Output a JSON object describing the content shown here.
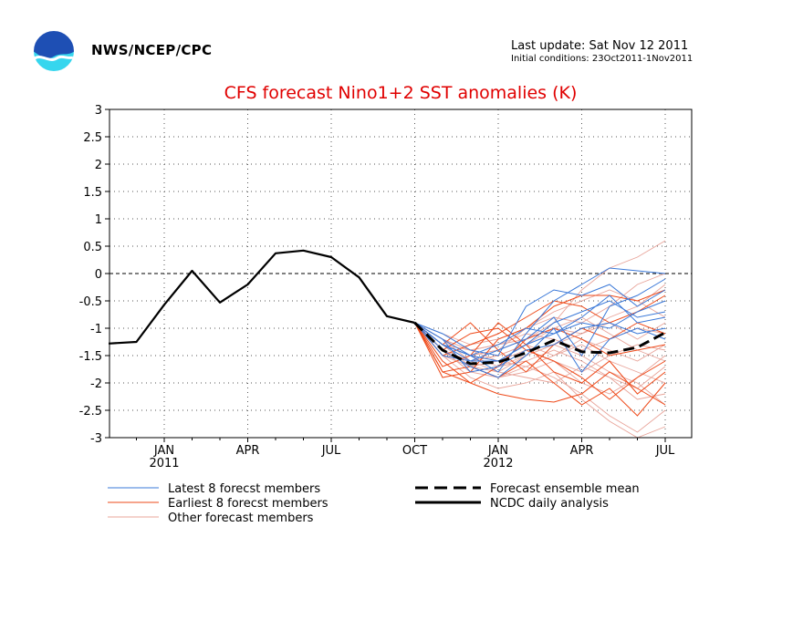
{
  "header": {
    "agency": "NWS/NCEP/CPC",
    "last_update": "Last update: Sat Nov 12 2011",
    "initial_conditions": "Initial conditions: 23Oct2011-1Nov2011"
  },
  "colors": {
    "title": "#e00000",
    "latest": "#3a78d8",
    "earliest": "#ee4a1a",
    "other": "#e8a49a",
    "mean": "#000000",
    "analysis": "#000000",
    "logo_blue": "#1e4fb4",
    "logo_cyan": "#36d6ee"
  },
  "chart_data": {
    "type": "line",
    "title": "CFS forecast Nino1+2 SST anomalies (K)",
    "ylim": [
      -3,
      3
    ],
    "yticks": [
      "3",
      "2.5",
      "2",
      "1.5",
      "1",
      "0.5",
      "0",
      "-0.5",
      "-1",
      "-1.5",
      "-2",
      "-2.5",
      "-3"
    ],
    "xlim": [
      -2,
      18
    ],
    "xticks": [
      {
        "x": 0,
        "label": "JAN",
        "year": "2011"
      },
      {
        "x": 3,
        "label": "APR",
        "year": ""
      },
      {
        "x": 6,
        "label": "JUL",
        "year": ""
      },
      {
        "x": 9,
        "label": "OCT",
        "year": ""
      },
      {
        "x": 12,
        "label": "JAN",
        "year": "2012"
      },
      {
        "x": 15,
        "label": "APR",
        "year": ""
      },
      {
        "x": 18,
        "label": "JUL",
        "year": ""
      }
    ],
    "grid": true,
    "zero_line": true,
    "analysis": {
      "name": "NCDC daily analysis",
      "x": [
        -2,
        -1,
        0,
        1,
        2,
        3,
        4,
        5,
        6,
        7,
        8,
        9
      ],
      "y": [
        -1.28,
        -1.25,
        -0.57,
        0.05,
        -0.53,
        -0.2,
        0.37,
        0.42,
        0.3,
        -0.07,
        -0.78,
        -0.9
      ]
    },
    "ensemble_mean": {
      "name": "Forecast ensemble mean",
      "x": [
        9,
        10,
        11,
        12,
        13,
        14,
        15,
        16,
        17,
        18
      ],
      "y": [
        -0.9,
        -1.4,
        -1.65,
        -1.62,
        -1.45,
        -1.22,
        -1.43,
        -1.45,
        -1.35,
        -1.08
      ]
    },
    "members": {
      "x": [
        9,
        10,
        11,
        12,
        13,
        14,
        15,
        16,
        17,
        18
      ],
      "latest": {
        "name": "Latest 8 forecst members",
        "series": [
          [
            -0.9,
            -1.2,
            -1.5,
            -1.8,
            -1.1,
            -0.5,
            -0.2,
            0.1,
            0.05,
            0.0
          ],
          [
            -0.9,
            -1.3,
            -1.6,
            -1.6,
            -1.3,
            -0.9,
            -0.7,
            -0.5,
            -0.8,
            -0.7
          ],
          [
            -0.9,
            -1.1,
            -1.4,
            -1.5,
            -0.6,
            -0.3,
            -0.4,
            -0.2,
            -0.6,
            -0.3
          ],
          [
            -0.9,
            -1.4,
            -1.7,
            -1.9,
            -1.5,
            -1.0,
            -1.8,
            -1.2,
            -1.0,
            -1.2
          ],
          [
            -0.9,
            -1.3,
            -1.5,
            -1.3,
            -1.0,
            -1.1,
            -0.8,
            -0.4,
            -0.9,
            -0.8
          ],
          [
            -0.9,
            -1.2,
            -1.8,
            -1.7,
            -1.4,
            -1.3,
            -1.0,
            -0.9,
            -1.1,
            -1.0
          ],
          [
            -0.9,
            -1.5,
            -1.6,
            -1.4,
            -1.2,
            -0.8,
            -1.5,
            -0.6,
            -0.4,
            -0.1
          ],
          [
            -0.9,
            -1.3,
            -1.5,
            -1.6,
            -1.3,
            -1.1,
            -0.9,
            -1.0,
            -0.7,
            -0.5
          ]
        ]
      },
      "earliest": {
        "name": "Earliest 8 forecst members",
        "series": [
          [
            -0.9,
            -1.9,
            -1.8,
            -1.2,
            -1.0,
            -0.6,
            -0.4,
            -0.4,
            -0.5,
            -0.3
          ],
          [
            -0.9,
            -1.8,
            -2.0,
            -2.2,
            -2.3,
            -2.35,
            -2.2,
            -1.8,
            -2.1,
            -2.4
          ],
          [
            -0.9,
            -1.4,
            -1.1,
            -1.0,
            -1.4,
            -1.6,
            -1.9,
            -2.3,
            -1.9,
            -1.6
          ],
          [
            -0.9,
            -1.7,
            -1.5,
            -0.9,
            -1.3,
            -1.8,
            -2.0,
            -1.6,
            -2.2,
            -1.8
          ],
          [
            -0.9,
            -1.6,
            -2.0,
            -1.7,
            -1.2,
            -1.0,
            -1.2,
            -1.5,
            -1.4,
            -1.3
          ],
          [
            -0.9,
            -1.5,
            -1.3,
            -1.1,
            -0.8,
            -0.5,
            -0.6,
            -0.9,
            -0.7,
            -0.4
          ],
          [
            -0.9,
            -1.8,
            -1.7,
            -1.9,
            -1.6,
            -2.0,
            -2.4,
            -2.1,
            -2.6,
            -2.0
          ],
          [
            -0.9,
            -1.3,
            -0.9,
            -1.4,
            -1.8,
            -1.3,
            -1.0,
            -1.2,
            -0.9,
            -1.1
          ]
        ]
      },
      "other": {
        "name": "Other forecast members",
        "series": [
          [
            -0.9,
            -1.3,
            -1.5,
            -1.4,
            -1.2,
            -0.9,
            -0.3,
            0.1,
            0.3,
            0.6
          ],
          [
            -0.9,
            -1.4,
            -1.7,
            -1.8,
            -1.5,
            -1.3,
            -1.1,
            -0.8,
            -0.6,
            -0.2
          ],
          [
            -0.9,
            -1.2,
            -1.4,
            -1.6,
            -1.7,
            -1.9,
            -2.2,
            -2.6,
            -2.9,
            -2.5
          ],
          [
            -0.9,
            -1.5,
            -1.9,
            -2.1,
            -2.0,
            -1.8,
            -2.3,
            -2.7,
            -3.0,
            -2.8
          ],
          [
            -0.9,
            -1.3,
            -1.6,
            -1.5,
            -1.3,
            -1.0,
            -0.8,
            -1.1,
            -1.4,
            -1.6
          ],
          [
            -0.9,
            -1.2,
            -1.5,
            -1.7,
            -1.6,
            -1.4,
            -1.6,
            -1.9,
            -2.1,
            -1.7
          ],
          [
            -0.9,
            -1.1,
            -1.3,
            -1.2,
            -1.0,
            -0.7,
            -0.5,
            -0.3,
            -0.5,
            -0.8
          ],
          [
            -0.9,
            -1.4,
            -1.8,
            -1.9,
            -1.7,
            -1.5,
            -1.3,
            -1.6,
            -1.8,
            -2.0
          ],
          [
            -0.9,
            -1.3,
            -1.4,
            -1.3,
            -1.1,
            -1.2,
            -1.4,
            -1.2,
            -1.0,
            -1.1
          ],
          [
            -0.9,
            -1.5,
            -1.7,
            -1.6,
            -1.4,
            -1.6,
            -1.8,
            -1.5,
            -1.3,
            -1.4
          ],
          [
            -0.9,
            -1.2,
            -1.6,
            -1.8,
            -1.9,
            -2.0,
            -1.7,
            -1.9,
            -2.3,
            -2.2
          ],
          [
            -0.9,
            -1.3,
            -1.5,
            -1.4,
            -1.0,
            -0.8,
            -0.9,
            -0.6,
            -0.2,
            0.0
          ],
          [
            -0.9,
            -1.4,
            -1.6,
            -1.5,
            -1.3,
            -1.5,
            -1.2,
            -1.4,
            -1.6,
            -1.3
          ],
          [
            -0.9,
            -1.3,
            -1.7,
            -1.9,
            -1.8,
            -1.6,
            -2.0,
            -2.2,
            -1.9,
            -1.5
          ],
          [
            -0.9,
            -1.2,
            -1.4,
            -1.3,
            -1.2,
            -1.0,
            -1.1,
            -0.9,
            -1.2,
            -0.9
          ],
          [
            -0.9,
            -1.4,
            -1.8,
            -1.7,
            -1.5,
            -1.3,
            -1.5,
            -1.8,
            -2.0,
            -2.4
          ]
        ]
      }
    },
    "legend": {
      "placement": "bottom",
      "entries": [
        {
          "key": "latest",
          "label": "Latest 8 forecst members",
          "style": "thin"
        },
        {
          "key": "earliest",
          "label": "Earliest 8 forecst members",
          "style": "thin"
        },
        {
          "key": "other",
          "label": "Other forecast members",
          "style": "thin"
        },
        {
          "key": "mean",
          "label": "Forecast ensemble mean",
          "style": "dashed-thick"
        },
        {
          "key": "analysis",
          "label": "NCDC daily analysis",
          "style": "solid-thick"
        }
      ]
    }
  }
}
